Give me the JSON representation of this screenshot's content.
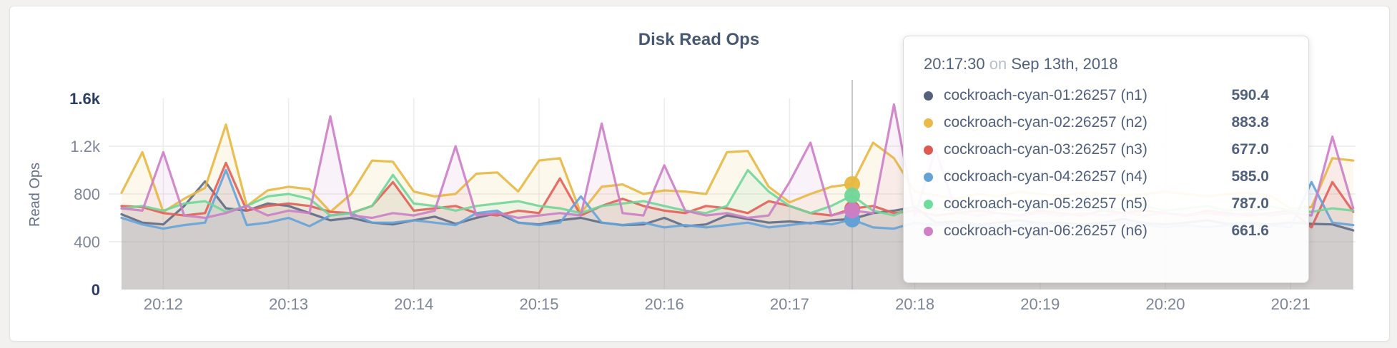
{
  "page": {
    "title": "Disk Read Ops"
  },
  "y_axis": {
    "label": "Read Ops"
  },
  "tooltip": {
    "time": "20:17:30",
    "on_word": "on",
    "date": "Sep 13th, 2018",
    "rows": [
      {
        "label": "cockroach-cyan-01:26257 (n1)",
        "value": "590.4",
        "color": "#55617c"
      },
      {
        "label": "cockroach-cyan-02:26257 (n2)",
        "value": "883.8",
        "color": "#e9b949"
      },
      {
        "label": "cockroach-cyan-03:26257 (n3)",
        "value": "677.0",
        "color": "#de5a50"
      },
      {
        "label": "cockroach-cyan-04:26257 (n4)",
        "value": "585.0",
        "color": "#64a3d6"
      },
      {
        "label": "cockroach-cyan-05:26257 (n5)",
        "value": "787.0",
        "color": "#d07fc8"
      }
    ]
  },
  "tooltip_rows_fix_note": "rows listed fully in chart_data.series order below",
  "chart_data": {
    "type": "line",
    "title": "Disk Read Ops",
    "ylabel": "Read Ops",
    "ylim": [
      0,
      1600
    ],
    "grid": true,
    "x_start_time": "20:11:40",
    "x_step_seconds": 10,
    "x_tick_labels": [
      "20:12",
      "20:13",
      "20:14",
      "20:15",
      "20:16",
      "20:17",
      "20:18",
      "20:19",
      "20:20",
      "20:21"
    ],
    "x_tick_start_index": 2,
    "x_tick_every": 6,
    "y_ticks": [
      {
        "label": "1.6k",
        "value": 1600,
        "grid": false,
        "emphasis": true
      },
      {
        "label": "1.2k",
        "value": 1200,
        "grid": true,
        "emphasis": false
      },
      {
        "label": "800",
        "value": 800,
        "grid": true,
        "emphasis": false
      },
      {
        "label": "400",
        "value": 400,
        "grid": true,
        "emphasis": false
      },
      {
        "label": "0",
        "value": 0,
        "grid": false,
        "emphasis": true
      }
    ],
    "hover_index": 35,
    "hover_time": "20:17:30",
    "hover_date": "Sep 13th, 2018",
    "hover_values": {
      "n1": 590.4,
      "n2": 883.8,
      "n3": 677.0,
      "n4": 585.0,
      "n5": 787.0,
      "n6": 661.6
    },
    "series": [
      {
        "name": "cockroach-cyan-01:26257 (n1)",
        "color": "#5e6b85",
        "values": [
          630,
          560,
          545,
          700,
          905,
          680,
          660,
          720,
          700,
          640,
          580,
          600,
          560,
          545,
          580,
          610,
          550,
          600,
          640,
          560,
          545,
          580,
          600,
          560,
          540,
          545,
          600,
          530,
          545,
          620,
          590,
          560,
          570,
          555,
          580,
          590.4,
          640,
          660,
          690,
          560,
          570,
          545,
          560,
          580,
          555,
          560,
          545,
          560,
          590,
          555,
          545,
          560,
          580,
          550,
          560,
          545,
          560,
          550,
          545,
          495
        ]
      },
      {
        "name": "cockroach-cyan-02:26257 (n2)",
        "color": "#e8b740",
        "values": [
          810,
          1150,
          650,
          760,
          850,
          1380,
          700,
          830,
          860,
          840,
          650,
          800,
          1080,
          1070,
          820,
          780,
          800,
          970,
          980,
          820,
          1080,
          1100,
          640,
          860,
          880,
          800,
          830,
          820,
          800,
          1150,
          1160,
          860,
          730,
          800,
          860,
          883.8,
          1230,
          1100,
          820,
          790,
          760,
          800,
          780,
          820,
          800,
          780,
          810,
          800,
          790,
          800,
          820,
          800,
          780,
          800,
          810,
          790,
          680,
          690,
          1100,
          1080
        ]
      },
      {
        "name": "cockroach-cyan-03:26257 (n3)",
        "color": "#e25f57",
        "values": [
          700,
          690,
          640,
          620,
          640,
          1060,
          660,
          700,
          720,
          700,
          650,
          640,
          700,
          900,
          660,
          680,
          700,
          640,
          620,
          660,
          640,
          930,
          620,
          700,
          760,
          700,
          660,
          640,
          700,
          680,
          640,
          740,
          700,
          640,
          620,
          677,
          700,
          640,
          660,
          620,
          640,
          660,
          640,
          620,
          660,
          640,
          620,
          660,
          640,
          660,
          640,
          620,
          660,
          640,
          620,
          640,
          660,
          520,
          900,
          650
        ]
      },
      {
        "name": "cockroach-cyan-04:26257 (n4)",
        "color": "#64a3d9",
        "values": [
          600,
          545,
          510,
          540,
          560,
          1000,
          540,
          560,
          600,
          530,
          620,
          640,
          560,
          560,
          580,
          560,
          540,
          640,
          660,
          560,
          540,
          560,
          780,
          560,
          540,
          560,
          520,
          540,
          520,
          540,
          560,
          520,
          540,
          560,
          545,
          585,
          520,
          510,
          560,
          540,
          560,
          540,
          520,
          540,
          560,
          540,
          520,
          540,
          560,
          540,
          520,
          540,
          520,
          540,
          560,
          540,
          520,
          900,
          560,
          540
        ]
      },
      {
        "name": "cockroach-cyan-05:26257 (n5)",
        "color": "#70d699",
        "values": [
          680,
          700,
          660,
          720,
          740,
          650,
          700,
          780,
          800,
          760,
          620,
          640,
          700,
          960,
          720,
          700,
          660,
          700,
          720,
          740,
          700,
          680,
          640,
          700,
          720,
          740,
          700,
          660,
          640,
          700,
          1000,
          820,
          700,
          640,
          700,
          787,
          660,
          620,
          700,
          680,
          660,
          700,
          680,
          660,
          700,
          680,
          700,
          660,
          680,
          700,
          660,
          680,
          700,
          660,
          680,
          700,
          660,
          650,
          680,
          660
        ]
      },
      {
        "name": "cockroach-cyan-06:26257 (n6)",
        "color": "#cc7ec6",
        "values": [
          680,
          660,
          1150,
          620,
          600,
          640,
          700,
          620,
          660,
          640,
          1450,
          620,
          600,
          640,
          620,
          660,
          1200,
          620,
          640,
          600,
          620,
          640,
          620,
          1390,
          640,
          620,
          1040,
          660,
          620,
          640,
          600,
          620,
          900,
          1230,
          620,
          661.6,
          640,
          1550,
          620,
          1170,
          640,
          620,
          640,
          620,
          640,
          620,
          640,
          620,
          640,
          620,
          640,
          620,
          640,
          620,
          640,
          620,
          640,
          620,
          1280,
          680
        ]
      }
    ],
    "tooltip_rows": [
      {
        "label": "cockroach-cyan-01:26257 (n1)",
        "value": "590.4",
        "color": "#55617c"
      },
      {
        "label": "cockroach-cyan-02:26257 (n2)",
        "value": "883.8",
        "color": "#e9b949"
      },
      {
        "label": "cockroach-cyan-03:26257 (n3)",
        "value": "677.0",
        "color": "#de5a50"
      },
      {
        "label": "cockroach-cyan-04:26257 (n4)",
        "value": "585.0",
        "color": "#64a3d6"
      },
      {
        "label": "cockroach-cyan-05:26257 (n5)",
        "value": "787.0",
        "color": "#6edc9b"
      },
      {
        "label": "cockroach-cyan-06:26257 (n6)",
        "value": "661.6",
        "color": "#d07fc8"
      }
    ]
  }
}
